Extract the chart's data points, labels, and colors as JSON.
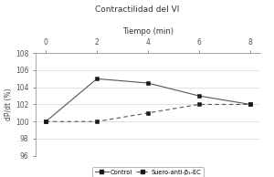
{
  "title1": "Contractilidad del VI",
  "title2": "Tiempo (min)",
  "ylabel": "dP/dt (%)",
  "x": [
    0,
    2,
    4,
    6,
    8
  ],
  "control_y": [
    100,
    105,
    104.5,
    103,
    102
  ],
  "serum_y": [
    100,
    100,
    101,
    102,
    102
  ],
  "ylim": [
    96,
    108
  ],
  "yticks": [
    96,
    98,
    100,
    102,
    104,
    106,
    108
  ],
  "xticks": [
    0,
    2,
    4,
    6,
    8
  ],
  "line_color": "#555555",
  "marker_color": "#1a1a1a",
  "legend1": "Control",
  "legend2": "Suero-anti-β₁-EC"
}
